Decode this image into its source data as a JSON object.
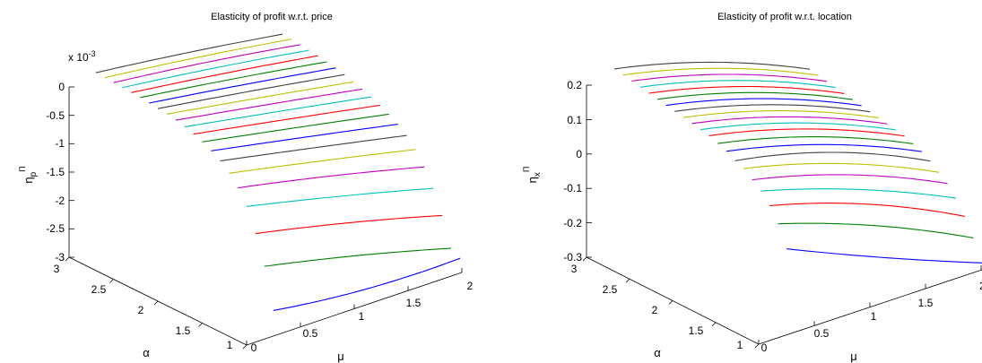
{
  "figure": {
    "colors": [
      "#0000ff",
      "#008000",
      "#ff0000",
      "#00bfbf",
      "#bf00bf",
      "#bfbf00",
      "#404040"
    ]
  },
  "chart_data": [
    {
      "type": "line",
      "title": "Elasticity of profit w.r.t. price",
      "zlabel": "η_p^Π",
      "zlabel_main": "η",
      "zlabel_sub": "p",
      "zlabel_sup": "Π",
      "xlabel": "μ",
      "ylabel": "α",
      "exponent_label": "x 10",
      "exponent_power": "-3",
      "zlim": [
        -3,
        0
      ],
      "xlim": [
        0,
        2
      ],
      "ylim": [
        1,
        3
      ],
      "z_ticks": [
        "0",
        "-0.5",
        "-1",
        "-1.5",
        "-2",
        "-2.5",
        "-3"
      ],
      "x_ticks": [
        "0",
        "0.5",
        "1",
        "1.5",
        "2"
      ],
      "y_ticks": [
        "3",
        "2.5",
        "2",
        "1.5",
        "1"
      ],
      "series_alpha": [
        1.0,
        1.1,
        1.2,
        1.3,
        1.4,
        1.5,
        1.6,
        1.7,
        1.8,
        1.9,
        2.0,
        2.1,
        2.2,
        2.3,
        2.4,
        2.5,
        2.6,
        2.7,
        2.8,
        2.9,
        3.0
      ],
      "x": [
        0.25,
        2.0
      ],
      "series_curves": [
        [
          -2.55,
          -2.73,
          -2.75
        ],
        [
          -1.85,
          -2.22,
          -2.65
        ],
        [
          -1.35,
          -1.72,
          -2.15
        ],
        [
          -0.95,
          -1.33,
          -1.75
        ],
        [
          -0.7,
          -1.05,
          -1.45
        ],
        [
          -0.52,
          -0.86,
          -1.22
        ],
        [
          -0.38,
          -0.71,
          -1.05
        ],
        [
          -0.28,
          -0.6,
          -0.93
        ],
        [
          -0.2,
          -0.51,
          -0.83
        ],
        [
          -0.14,
          -0.44,
          -0.75
        ],
        [
          -0.09,
          -0.38,
          -0.68
        ],
        [
          -0.05,
          -0.33,
          -0.62
        ],
        [
          -0.02,
          -0.29,
          -0.57
        ],
        [
          0.0,
          -0.25,
          -0.52
        ],
        [
          0.02,
          -0.22,
          -0.48
        ],
        [
          0.04,
          -0.19,
          -0.45
        ],
        [
          0.05,
          -0.17,
          -0.42
        ],
        [
          0.06,
          -0.15,
          -0.4
        ],
        [
          0.07,
          -0.13,
          -0.38
        ],
        [
          0.08,
          -0.12,
          -0.36
        ],
        [
          0.09,
          -0.11,
          -0.35
        ]
      ]
    },
    {
      "type": "line",
      "title": "Elasticity of profit w.r.t. location",
      "zlabel": "η_x^Π",
      "zlabel_main": "η",
      "zlabel_sub": "x",
      "zlabel_sup": "Π",
      "xlabel": "μ",
      "ylabel": "α",
      "zlim": [
        -0.3,
        0.2
      ],
      "xlim": [
        0,
        2
      ],
      "ylim": [
        1,
        3
      ],
      "z_ticks": [
        "0.2",
        "0.1",
        "0",
        "-0.1",
        "-0.2",
        "-0.3"
      ],
      "x_ticks": [
        "0",
        "0.5",
        "1",
        "1.5",
        "2"
      ],
      "y_ticks": [
        "3",
        "2.5",
        "2",
        "1.5",
        "1"
      ],
      "series_alpha": [
        1.0,
        1.1,
        1.2,
        1.3,
        1.4,
        1.5,
        1.6,
        1.7,
        1.8,
        1.9,
        2.0,
        2.1,
        2.2,
        2.3,
        2.4,
        2.5,
        2.6,
        2.7,
        2.8,
        2.9,
        3.0
      ],
      "x": [
        0.25,
        2.0
      ],
      "series_curves": [
        [
          -0.05,
          -0.17,
          -0.28
        ],
        [
          0.01,
          -0.09,
          -0.22
        ],
        [
          0.05,
          -0.04,
          -0.17
        ],
        [
          0.08,
          -0.01,
          -0.13
        ],
        [
          0.1,
          0.02,
          -0.1
        ],
        [
          0.12,
          0.04,
          -0.08
        ],
        [
          0.13,
          0.06,
          -0.06
        ],
        [
          0.145,
          0.07,
          -0.045
        ],
        [
          0.155,
          0.08,
          -0.035
        ],
        [
          0.165,
          0.09,
          -0.025
        ],
        [
          0.17,
          0.095,
          -0.02
        ],
        [
          0.175,
          0.1,
          -0.015
        ],
        [
          0.18,
          0.105,
          -0.01
        ],
        [
          0.185,
          0.11,
          -0.005
        ],
        [
          0.19,
          0.115,
          0.0
        ],
        [
          0.195,
          0.12,
          0.005
        ],
        [
          0.2,
          0.125,
          0.01
        ],
        [
          0.205,
          0.13,
          0.015
        ],
        [
          0.21,
          0.135,
          0.02
        ],
        [
          0.215,
          0.14,
          0.025
        ],
        [
          0.22,
          0.145,
          0.03
        ]
      ]
    }
  ]
}
